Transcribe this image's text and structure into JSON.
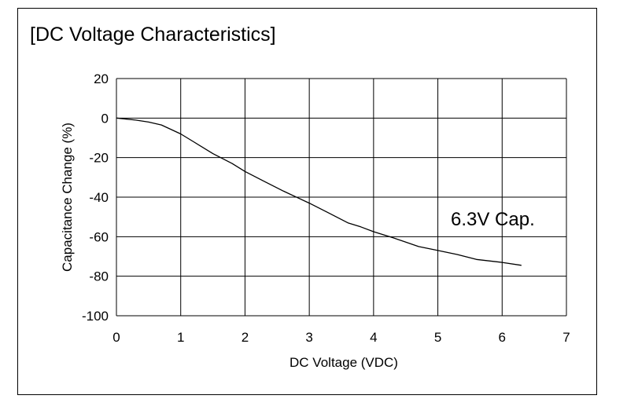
{
  "chart_data": {
    "type": "line",
    "title": "[DC Voltage Characteristics]",
    "xlabel": "DC Voltage (VDC)",
    "ylabel": "Capacitance Change (%)",
    "xlim": [
      0,
      7
    ],
    "ylim": [
      -100,
      20
    ],
    "xticks": [
      "0",
      "1",
      "2",
      "3",
      "4",
      "5",
      "6",
      "7"
    ],
    "yticks": [
      "20",
      "0",
      "-20",
      "-40",
      "-60",
      "-80",
      "-100"
    ],
    "grid": true,
    "annotation": "6.3V Cap.",
    "series": [
      {
        "x": [
          0,
          0.3,
          0.5,
          0.7,
          1.0,
          1.2,
          1.5,
          1.8,
          2.0,
          2.3,
          2.6,
          3.0,
          3.3,
          3.6,
          3.8,
          4.0,
          4.3,
          4.7,
          5.0,
          5.3,
          5.6,
          6.0,
          6.3
        ],
        "y": [
          0,
          -1,
          -2,
          -3.5,
          -8,
          -12,
          -18,
          -23,
          -27,
          -32,
          -37,
          -43,
          -48,
          -53,
          -55,
          -57.5,
          -60.5,
          -65,
          -67,
          -69,
          -71.5,
          -73,
          -74.5
        ]
      }
    ]
  }
}
